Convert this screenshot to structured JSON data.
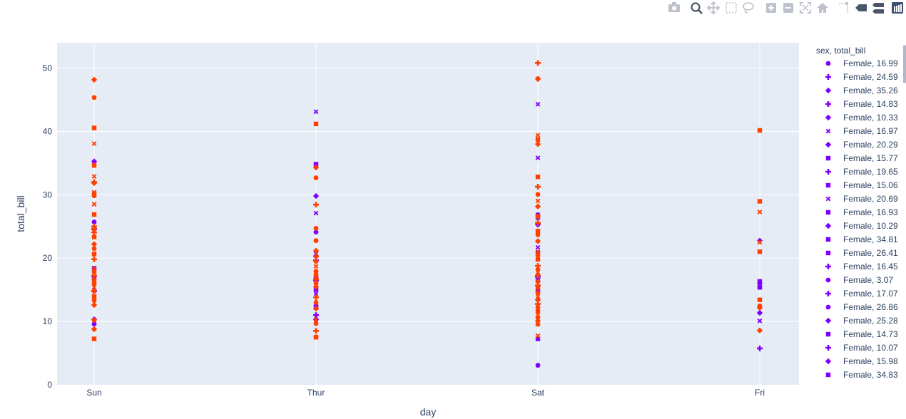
{
  "modebar": {
    "buttons": [
      {
        "name": "camera-icon",
        "label": "Download plot as a png"
      },
      {
        "name": "zoom-icon",
        "label": "Zoom"
      },
      {
        "name": "pan-icon",
        "label": "Pan"
      },
      {
        "name": "box-select-icon",
        "label": "Box Select"
      },
      {
        "name": "lasso-select-icon",
        "label": "Lasso Select"
      },
      {
        "name": "zoom-in-icon",
        "label": "Zoom in"
      },
      {
        "name": "zoom-out-icon",
        "label": "Zoom out"
      },
      {
        "name": "autoscale-icon",
        "label": "Autoscale"
      },
      {
        "name": "home-icon",
        "label": "Reset axes"
      },
      {
        "name": "spike-lines-icon",
        "label": "Toggle Spike Lines"
      },
      {
        "name": "hover-closest-icon",
        "label": "Show closest data on hover"
      },
      {
        "name": "hover-compare-icon",
        "label": "Compare data on hover"
      },
      {
        "name": "plotly-logo-icon",
        "label": "Produced with Plotly"
      }
    ]
  },
  "colors": {
    "female": "#8000ff",
    "male": "#ff4000",
    "plot_bg": "#e5ecf6",
    "grid": "#ffffff",
    "text": "#2a3f5f"
  },
  "chart_data": {
    "type": "scatter",
    "title": "",
    "xlabel": "day",
    "ylabel": "total_bill",
    "categories": [
      "Sun",
      "Thur",
      "Sat",
      "Fri"
    ],
    "ylim": [
      0,
      54
    ],
    "yticks": [
      0,
      10,
      20,
      30,
      40,
      50
    ],
    "grid": true,
    "legend": {
      "title": "sex, total_bill",
      "placement": "right",
      "entries": [
        {
          "label": "Female, 16.99",
          "symbol": "circle"
        },
        {
          "label": "Female, 24.59",
          "symbol": "cross"
        },
        {
          "label": "Female, 35.26",
          "symbol": "diamond"
        },
        {
          "label": "Female, 14.83",
          "symbol": "cross"
        },
        {
          "label": "Female, 10.33",
          "symbol": "diamond"
        },
        {
          "label": "Female, 16.97",
          "symbol": "x"
        },
        {
          "label": "Female, 20.29",
          "symbol": "diamond"
        },
        {
          "label": "Female, 15.77",
          "symbol": "square"
        },
        {
          "label": "Female, 19.65",
          "symbol": "cross"
        },
        {
          "label": "Female, 15.06",
          "symbol": "square"
        },
        {
          "label": "Female, 20.69",
          "symbol": "x"
        },
        {
          "label": "Female, 16.93",
          "symbol": "square"
        },
        {
          "label": "Female, 10.29",
          "symbol": "diamond"
        },
        {
          "label": "Female, 34.81",
          "symbol": "square"
        },
        {
          "label": "Female, 26.41",
          "symbol": "square"
        },
        {
          "label": "Female, 16.45",
          "symbol": "cross"
        },
        {
          "label": "Female, 3.07",
          "symbol": "circle"
        },
        {
          "label": "Female, 17.07",
          "symbol": "cross"
        },
        {
          "label": "Female, 26.86",
          "symbol": "circle"
        },
        {
          "label": "Female, 25.28",
          "symbol": "diamond"
        },
        {
          "label": "Female, 14.73",
          "symbol": "square"
        },
        {
          "label": "Female, 10.07",
          "symbol": "cross"
        },
        {
          "label": "Female, 15.98",
          "symbol": "diamond"
        },
        {
          "label": "Female, 34.83",
          "symbol": "square"
        }
      ]
    },
    "series": [
      {
        "sex": "Female",
        "points": [
          [
            "Sun",
            16.99,
            "circle"
          ],
          [
            "Sun",
            24.59,
            "cross"
          ],
          [
            "Sun",
            35.26,
            "diamond"
          ],
          [
            "Sun",
            14.83,
            "cross"
          ],
          [
            "Sun",
            10.33,
            "diamond"
          ],
          [
            "Sun",
            16.97,
            "x"
          ],
          [
            "Sun",
            9.6,
            "circle"
          ],
          [
            "Sun",
            18.4,
            "square"
          ],
          [
            "Sun",
            25.7,
            "circle"
          ],
          [
            "Thur",
            43.11,
            "x"
          ],
          [
            "Thur",
            34.83,
            "square"
          ],
          [
            "Thur",
            29.8,
            "diamond"
          ],
          [
            "Thur",
            27.1,
            "x"
          ],
          [
            "Thur",
            24.1,
            "circle"
          ],
          [
            "Thur",
            20.29,
            "diamond"
          ],
          [
            "Thur",
            19.65,
            "cross"
          ],
          [
            "Thur",
            16.93,
            "square"
          ],
          [
            "Thur",
            15.06,
            "square"
          ],
          [
            "Thur",
            14.4,
            "x"
          ],
          [
            "Thur",
            12.5,
            "circle"
          ],
          [
            "Thur",
            12.2,
            "square"
          ],
          [
            "Thur",
            11.0,
            "cross"
          ],
          [
            "Thur",
            10.29,
            "diamond"
          ],
          [
            "Thur",
            20.69,
            "x"
          ],
          [
            "Thur",
            16.45,
            "cross"
          ],
          [
            "Sat",
            44.3,
            "x"
          ],
          [
            "Sat",
            35.83,
            "x"
          ],
          [
            "Sat",
            26.86,
            "circle"
          ],
          [
            "Sat",
            26.41,
            "square"
          ],
          [
            "Sat",
            25.28,
            "diamond"
          ],
          [
            "Sat",
            21.7,
            "x"
          ],
          [
            "Sat",
            20.9,
            "circle"
          ],
          [
            "Sat",
            17.07,
            "cross"
          ],
          [
            "Sat",
            16.5,
            "square"
          ],
          [
            "Sat",
            14.73,
            "square"
          ],
          [
            "Sat",
            13.4,
            "diamond"
          ],
          [
            "Sat",
            7.25,
            "square"
          ],
          [
            "Sat",
            3.07,
            "circle"
          ],
          [
            "Fri",
            22.75,
            "diamond"
          ],
          [
            "Fri",
            16.32,
            "square"
          ],
          [
            "Fri",
            15.98,
            "diamond"
          ],
          [
            "Fri",
            15.38,
            "square"
          ],
          [
            "Fri",
            11.35,
            "diamond"
          ],
          [
            "Fri",
            10.09,
            "x"
          ],
          [
            "Fri",
            5.75,
            "cross"
          ]
        ]
      },
      {
        "sex": "Male",
        "points": [
          [
            "Sun",
            48.17,
            "diamond"
          ],
          [
            "Sun",
            45.35,
            "circle"
          ],
          [
            "Sun",
            40.55,
            "square"
          ],
          [
            "Sun",
            38.07,
            "x"
          ],
          [
            "Sun",
            34.63,
            "square"
          ],
          [
            "Sun",
            32.9,
            "x"
          ],
          [
            "Sun",
            32.0,
            "cross"
          ],
          [
            "Sun",
            31.85,
            "diamond"
          ],
          [
            "Sun",
            30.4,
            "x"
          ],
          [
            "Sun",
            30.1,
            "square"
          ],
          [
            "Sun",
            29.85,
            "circle"
          ],
          [
            "Sun",
            28.5,
            "x"
          ],
          [
            "Sun",
            26.88,
            "square"
          ],
          [
            "Sun",
            25.0,
            "cross"
          ],
          [
            "Sun",
            24.55,
            "circle"
          ],
          [
            "Sun",
            24.06,
            "cross"
          ],
          [
            "Sun",
            23.33,
            "square"
          ],
          [
            "Sun",
            22.2,
            "diamond"
          ],
          [
            "Sun",
            21.5,
            "circle"
          ],
          [
            "Sun",
            20.65,
            "square"
          ],
          [
            "Sun",
            19.82,
            "cross"
          ],
          [
            "Sun",
            18.35,
            "x"
          ],
          [
            "Sun",
            17.81,
            "circle"
          ],
          [
            "Sun",
            17.26,
            "cross"
          ],
          [
            "Sun",
            16.6,
            "circle"
          ],
          [
            "Sun",
            16.0,
            "square"
          ],
          [
            "Sun",
            15.42,
            "x"
          ],
          [
            "Sun",
            14.78,
            "circle"
          ],
          [
            "Sun",
            13.94,
            "square"
          ],
          [
            "Sun",
            13.3,
            "circle"
          ],
          [
            "Sun",
            12.6,
            "diamond"
          ],
          [
            "Sun",
            10.2,
            "circle"
          ],
          [
            "Sun",
            8.77,
            "diamond"
          ],
          [
            "Sun",
            7.25,
            "square"
          ],
          [
            "Thur",
            41.19,
            "square"
          ],
          [
            "Thur",
            34.3,
            "diamond"
          ],
          [
            "Thur",
            32.68,
            "circle"
          ],
          [
            "Thur",
            28.44,
            "cross"
          ],
          [
            "Thur",
            24.71,
            "circle"
          ],
          [
            "Thur",
            22.76,
            "circle"
          ],
          [
            "Thur",
            21.16,
            "diamond"
          ],
          [
            "Thur",
            20.27,
            "cross"
          ],
          [
            "Thur",
            19.49,
            "circle"
          ],
          [
            "Thur",
            18.71,
            "x"
          ],
          [
            "Thur",
            17.92,
            "circle"
          ],
          [
            "Thur",
            17.29,
            "square"
          ],
          [
            "Thur",
            16.66,
            "cross"
          ],
          [
            "Thur",
            16.0,
            "circle"
          ],
          [
            "Thur",
            15.48,
            "diamond"
          ],
          [
            "Thur",
            13.81,
            "cross"
          ],
          [
            "Thur",
            13.0,
            "circle"
          ],
          [
            "Thur",
            12.03,
            "diamond"
          ],
          [
            "Thur",
            10.34,
            "x"
          ],
          [
            "Thur",
            9.68,
            "circle"
          ],
          [
            "Thur",
            8.52,
            "cross"
          ],
          [
            "Thur",
            7.51,
            "square"
          ],
          [
            "Thur",
            7.56,
            "circle"
          ],
          [
            "Sat",
            50.81,
            "cross"
          ],
          [
            "Sat",
            48.33,
            "circle"
          ],
          [
            "Sat",
            48.27,
            "diamond"
          ],
          [
            "Sat",
            39.42,
            "x"
          ],
          [
            "Sat",
            38.73,
            "square"
          ],
          [
            "Sat",
            38.01,
            "diamond"
          ],
          [
            "Sat",
            32.83,
            "square"
          ],
          [
            "Sat",
            31.27,
            "cross"
          ],
          [
            "Sat",
            30.06,
            "circle"
          ],
          [
            "Sat",
            29.03,
            "x"
          ],
          [
            "Sat",
            28.15,
            "diamond"
          ],
          [
            "Sat",
            26.59,
            "square"
          ],
          [
            "Sat",
            25.56,
            "cross"
          ],
          [
            "Sat",
            24.27,
            "square"
          ],
          [
            "Sat",
            23.68,
            "circle"
          ],
          [
            "Sat",
            22.67,
            "diamond"
          ],
          [
            "Sat",
            21.01,
            "x"
          ],
          [
            "Sat",
            20.45,
            "circle"
          ],
          [
            "Sat",
            19.81,
            "square"
          ],
          [
            "Sat",
            18.78,
            "cross"
          ],
          [
            "Sat",
            18.24,
            "circle"
          ],
          [
            "Sat",
            17.78,
            "x"
          ],
          [
            "Sat",
            17.31,
            "diamond"
          ],
          [
            "Sat",
            16.31,
            "circle"
          ],
          [
            "Sat",
            15.69,
            "cross"
          ],
          [
            "Sat",
            15.36,
            "square"
          ],
          [
            "Sat",
            14.52,
            "circle"
          ],
          [
            "Sat",
            13.94,
            "x"
          ],
          [
            "Sat",
            13.39,
            "diamond"
          ],
          [
            "Sat",
            12.76,
            "cross"
          ],
          [
            "Sat",
            12.26,
            "circle"
          ],
          [
            "Sat",
            11.59,
            "square"
          ],
          [
            "Sat",
            11.02,
            "x"
          ],
          [
            "Sat",
            10.59,
            "circle"
          ],
          [
            "Sat",
            10.07,
            "diamond"
          ],
          [
            "Sat",
            9.55,
            "circle"
          ],
          [
            "Sat",
            7.74,
            "x"
          ],
          [
            "Fri",
            40.17,
            "square"
          ],
          [
            "Fri",
            28.97,
            "square"
          ],
          [
            "Fri",
            27.28,
            "x"
          ],
          [
            "Fri",
            22.49,
            "x"
          ],
          [
            "Fri",
            21.01,
            "square"
          ],
          [
            "Fri",
            13.42,
            "square"
          ],
          [
            "Fri",
            12.46,
            "circle"
          ],
          [
            "Fri",
            12.16,
            "diamond"
          ],
          [
            "Fri",
            8.58,
            "diamond"
          ]
        ]
      }
    ]
  }
}
